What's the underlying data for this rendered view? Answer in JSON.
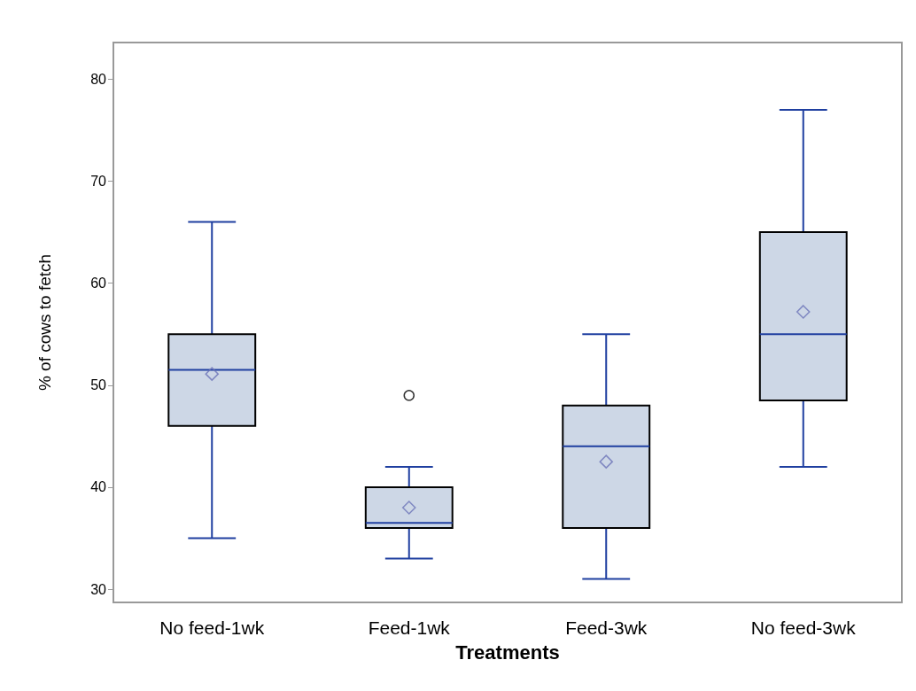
{
  "chart_data": {
    "type": "box",
    "xlabel": "Treatments",
    "ylabel": "% of cows to fetch",
    "categories": [
      "No feed-1wk",
      "Feed-1wk",
      "Feed-3wk",
      "No feed-3wk"
    ],
    "color": "#cdd7e6",
    "boxes": [
      {
        "low": 35,
        "q1": 46,
        "median": 51.5,
        "q3": 55,
        "high": 66,
        "mean": 51.1
      },
      {
        "low": 33,
        "q1": 36,
        "median": 36.5,
        "q3": 40,
        "high": 42,
        "mean": 38,
        "outliers": [
          49
        ]
      },
      {
        "low": 31,
        "q1": 36,
        "median": 44,
        "q3": 48,
        "high": 55,
        "mean": 42.5
      },
      {
        "low": 42,
        "q1": 48.5,
        "median": 55,
        "q3": 65,
        "high": 77,
        "mean": 57.2
      }
    ],
    "ylim": [
      28.7,
      83.6
    ],
    "yticks": [
      30,
      40,
      50,
      60,
      70,
      80
    ],
    "grid": false
  }
}
